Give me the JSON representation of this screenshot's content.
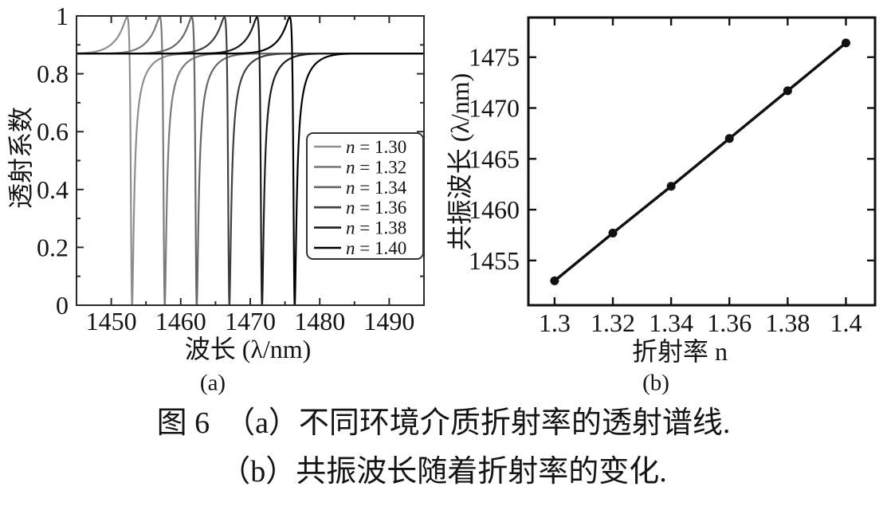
{
  "figure": {
    "caption_line1": "图 6　（a）不同环境介质折射率的透射谱线.",
    "caption_line2": "（b）共振波长随着折射率的变化."
  },
  "chart_data": [
    {
      "type": "line",
      "sublabel": "(a)",
      "xlabel": "波长 (λ/nm)",
      "ylabel": "透射系数",
      "xlim": [
        1445,
        1495
      ],
      "ylim": [
        0,
        1
      ],
      "xticks": [
        1450,
        1460,
        1470,
        1480,
        1490
      ],
      "xtick_labels": [
        "1450",
        "1460",
        "1470",
        "1480",
        "1490"
      ],
      "xminorticks": [
        1455,
        1465,
        1475,
        1485
      ],
      "yticks": [
        0,
        0.2,
        0.4,
        0.6,
        0.8,
        1
      ],
      "ytick_labels": [
        "0",
        "0.2",
        "0.4",
        "0.6",
        "0.8",
        "1"
      ],
      "yminorticks": [
        0.1,
        0.3,
        0.5,
        0.7,
        0.9
      ],
      "grid": false,
      "legend_position": "lower right",
      "baseline_transmission": 0.87,
      "fano_q": -0.3865,
      "fano_gamma_nm": 0.25,
      "envelope_sigma_nm": 3.0,
      "frame_color": "#2a2a2a",
      "series": [
        {
          "name": "n = 1.30",
          "resonance_nm": 1453.0,
          "color": "#8e8e8e"
        },
        {
          "name": "n = 1.32",
          "resonance_nm": 1457.7,
          "color": "#7b7b7b"
        },
        {
          "name": "n = 1.34",
          "resonance_nm": 1462.3,
          "color": "#676767"
        },
        {
          "name": "n = 1.36",
          "resonance_nm": 1467.0,
          "color": "#3f3f3f"
        },
        {
          "name": "n = 1.38",
          "resonance_nm": 1471.7,
          "color": "#1c1c1c"
        },
        {
          "name": "n = 1.40",
          "resonance_nm": 1476.4,
          "color": "#000000"
        }
      ]
    },
    {
      "type": "scatter",
      "sublabel": "(b)",
      "xlabel": "折射率 n",
      "ylabel": "共振波长 (λ/nm)",
      "xlim": [
        1.291,
        1.41
      ],
      "ylim": [
        1450.6,
        1478.9
      ],
      "xticks": [
        1.3,
        1.32,
        1.34,
        1.36,
        1.38,
        1.4
      ],
      "xtick_labels": [
        "1.3",
        "1.32",
        "1.34",
        "1.36",
        "1.38",
        "1.4"
      ],
      "yticks": [
        1455,
        1460,
        1465,
        1470,
        1475
      ],
      "ytick_labels": [
        "1455",
        "1460",
        "1465",
        "1470",
        "1475"
      ],
      "grid": false,
      "x": [
        1.3,
        1.32,
        1.34,
        1.36,
        1.38,
        1.4
      ],
      "y": [
        1453.0,
        1457.7,
        1462.3,
        1467.0,
        1471.7,
        1476.4
      ],
      "color": "#111111",
      "frame_color": "#111111"
    }
  ]
}
